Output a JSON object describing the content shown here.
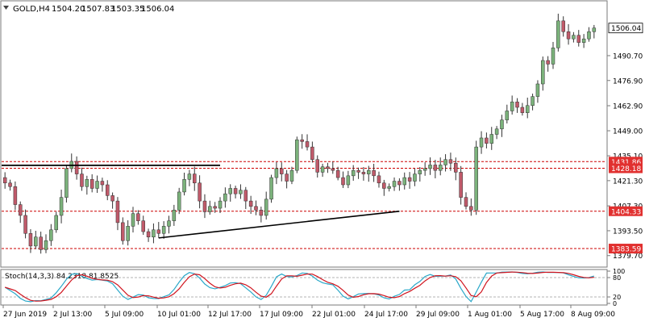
{
  "header": {
    "symbol": "GOLD,H4",
    "open": "1504.20",
    "high": "1507.83",
    "low": "1503.35",
    "close": "1506.04"
  },
  "colors": {
    "bull": "#7bb27b",
    "bear": "#c05a6a",
    "wick": "#333333",
    "level_line": "#cc0000",
    "trend_line": "#000000",
    "stoch_main": "#2aa8c9",
    "stoch_signal": "#d0141e",
    "price_tag_bg": "#ffffff",
    "level_tag_bg": "#e1302f"
  },
  "chart_data": {
    "type": "candlestick",
    "instrument": "GOLD",
    "timeframe": "H4",
    "ylim": [
      1376,
      1518
    ],
    "y_ticks": [
      "1379.70",
      "1393.50",
      "1407.30",
      "1421.30",
      "1435.10",
      "1449.00",
      "1462.90",
      "1476.90",
      "1490.70"
    ],
    "x_ticks": [
      "27 Jun 2019",
      "2 Jul 13:00",
      "5 Jul 09:00",
      "10 Jul 01:00",
      "12 Jul 17:00",
      "17 Jul 09:00",
      "22 Jul 01:00",
      "24 Jul 17:00",
      "29 Jul 09:00",
      "1 Aug 01:00",
      "5 Aug 17:00",
      "8 Aug 09:00"
    ],
    "current_price": "1506.04",
    "levels": [
      {
        "label": "1431.86",
        "value": 1431.86
      },
      {
        "label": "1428.18",
        "value": 1428.18
      },
      {
        "label": "1404.33",
        "value": 1404.33
      },
      {
        "label": "1383.59",
        "value": 1383.59
      }
    ],
    "closes": [
      1420,
      1418,
      1408,
      1402,
      1392,
      1385,
      1390,
      1383,
      1388,
      1394,
      1402,
      1412,
      1428,
      1432,
      1425,
      1418,
      1422,
      1417,
      1421,
      1419,
      1413,
      1410,
      1398,
      1388,
      1396,
      1403,
      1399,
      1393,
      1390,
      1394,
      1392,
      1396,
      1399,
      1405,
      1415,
      1422,
      1425,
      1420,
      1410,
      1404,
      1407,
      1406,
      1410,
      1414,
      1417,
      1414,
      1416,
      1410,
      1407,
      1405,
      1402,
      1411,
      1423,
      1428,
      1425,
      1421,
      1427,
      1444,
      1443,
      1440,
      1433,
      1426,
      1429,
      1428,
      1427,
      1423,
      1419,
      1424,
      1427,
      1426,
      1425,
      1427,
      1424,
      1420,
      1417,
      1418,
      1421,
      1419,
      1423,
      1421,
      1425,
      1427,
      1428,
      1430,
      1427,
      1430,
      1433,
      1431,
      1426,
      1412,
      1407,
      1405,
      1440,
      1445,
      1442,
      1447,
      1450,
      1455,
      1460,
      1465,
      1462,
      1459,
      1463,
      1468,
      1475,
      1488,
      1486,
      1495,
      1510,
      1504,
      1500,
      1502,
      1498,
      1500,
      1504,
      1506.04
    ],
    "trendline": [
      {
        "x": 30,
        "y": 1389.5
      },
      {
        "x": 77,
        "y": 1404.3
      }
    ],
    "resistance_line": {
      "x_start": 0,
      "x_end": 42,
      "y": 1429.8
    },
    "stochastic": {
      "label": "Stoch(14,3,3) 84.2318 81.8525",
      "main": 84.2318,
      "signal": 81.8525,
      "ylim": [
        0,
        100
      ],
      "ticks": [
        "100",
        "80",
        "20",
        "0"
      ],
      "levels": [
        80,
        20
      ]
    }
  }
}
